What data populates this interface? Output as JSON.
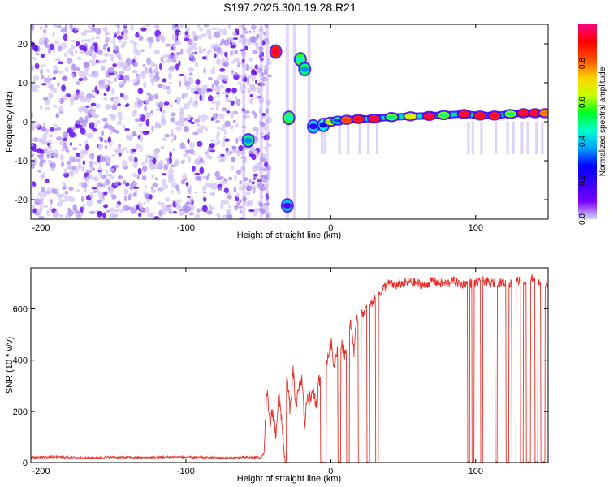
{
  "title": "S197.2025.300.19.28.R21",
  "colors": {
    "snr_line": "#e8312a",
    "axis": "#000000",
    "colorbar_stops": [
      "#d8d8ff",
      "#7a00ff",
      "#3a00ff",
      "#0000ff",
      "#00a0ff",
      "#00ffd0",
      "#00ff20",
      "#c8ff00",
      "#ffd000",
      "#ff5000",
      "#ff0000",
      "#ff0080"
    ]
  },
  "chart_data": [
    {
      "type": "heatmap",
      "name": "spectrogram",
      "xlabel": "Height of straight line (km)",
      "ylabel": "Frequency (Hz)",
      "xlim": [
        -207,
        150
      ],
      "ylim": [
        -25,
        25
      ],
      "xticks": [
        -200,
        -100,
        0,
        100
      ],
      "xtick_labels": [
        "-200",
        "-100",
        "0",
        "100"
      ],
      "yticks": [
        -20,
        -10,
        0,
        10,
        20
      ],
      "ytick_labels": [
        "-20",
        "-10",
        "0",
        "10",
        "20"
      ],
      "colorbar": {
        "label": "Normalized spectral amplitude",
        "range": [
          0,
          1
        ],
        "ticks": [
          0.0,
          0.2,
          0.4,
          0.6,
          0.8
        ],
        "tick_labels": [
          "0.0",
          "0.2",
          "0.4",
          "0.6",
          "0.8"
        ]
      },
      "noise_region_x": [
        -207,
        -42
      ],
      "signal_track": [
        {
          "x": -57,
          "f": -4.8,
          "a": 0.35
        },
        {
          "x": -38,
          "f": 18.0,
          "a": 0.95
        },
        {
          "x": -21,
          "f": 16.0,
          "a": 0.45
        },
        {
          "x": -18,
          "f": 13.5,
          "a": 0.35
        },
        {
          "x": -29,
          "f": 1.0,
          "a": 0.45
        },
        {
          "x": -30,
          "f": -21.5,
          "a": 0.15
        },
        {
          "x": -12,
          "f": -1.2,
          "a": 0.2
        },
        {
          "x": -5,
          "f": -0.8,
          "a": 0.25
        },
        {
          "x": 0,
          "f": 0.0,
          "a": 0.6
        },
        {
          "x": 5,
          "f": 0.3,
          "a": 0.3
        },
        {
          "x": 11,
          "f": 0.5,
          "a": 0.85
        },
        {
          "x": 19,
          "f": 0.7,
          "a": 0.95
        },
        {
          "x": 30,
          "f": 0.8,
          "a": 0.98
        },
        {
          "x": 42,
          "f": 1.2,
          "a": 0.5
        },
        {
          "x": 55,
          "f": 1.4,
          "a": 0.65
        },
        {
          "x": 68,
          "f": 1.5,
          "a": 0.98
        },
        {
          "x": 78,
          "f": 1.7,
          "a": 0.5
        },
        {
          "x": 92,
          "f": 2.0,
          "a": 0.98
        },
        {
          "x": 103,
          "f": 1.6,
          "a": 0.95
        },
        {
          "x": 113,
          "f": 1.6,
          "a": 0.95
        },
        {
          "x": 124,
          "f": 2.0,
          "a": 0.5
        },
        {
          "x": 133,
          "f": 2.2,
          "a": 0.98
        },
        {
          "x": 141,
          "f": 2.2,
          "a": 0.98
        },
        {
          "x": 148,
          "f": 2.2,
          "a": 0.8
        }
      ]
    },
    {
      "type": "line",
      "name": "snr",
      "xlabel": "Height of straight line (km)",
      "ylabel": "SNR (10 * v/v)",
      "xlim": [
        -207,
        150
      ],
      "ylim": [
        0,
        760
      ],
      "xticks": [
        -200,
        -100,
        0,
        100
      ],
      "xtick_labels": [
        "-200",
        "-100",
        "0",
        "100"
      ],
      "yticks": [
        0,
        200,
        400,
        600
      ],
      "ytick_labels": [
        "0",
        "200",
        "400",
        "600"
      ],
      "series": [
        {
          "name": "SNR",
          "x": [
            -207,
            -190,
            -170,
            -150,
            -130,
            -110,
            -90,
            -70,
            -60,
            -48,
            -46,
            -45,
            -44,
            -42,
            -40,
            -38,
            -36,
            -34,
            -32,
            -31,
            -30,
            -28,
            -26,
            -24,
            -22,
            -20,
            -18,
            -16,
            -14,
            -12,
            -10,
            -8,
            -6,
            -4,
            -2,
            0,
            2,
            4,
            6,
            8,
            10,
            12,
            14,
            16,
            18,
            20,
            22,
            24,
            26,
            28,
            30,
            32,
            34,
            36,
            38,
            40,
            45,
            50,
            55,
            60,
            65,
            70,
            75,
            80,
            85,
            90,
            94,
            95,
            97,
            98,
            100,
            103,
            104,
            106,
            110,
            113,
            114,
            116,
            120,
            122,
            124,
            126,
            130,
            132,
            134,
            136,
            140,
            142,
            144,
            146,
            150
          ],
          "y": [
            20,
            22,
            18,
            21,
            19,
            22,
            20,
            18,
            20,
            20,
            40,
            180,
            270,
            150,
            200,
            110,
            260,
            180,
            20,
            0,
            320,
            200,
            350,
            230,
            280,
            330,
            150,
            270,
            240,
            300,
            200,
            330,
            0,
            0,
            400,
            480,
            380,
            440,
            0,
            460,
            420,
            0,
            540,
            440,
            560,
            0,
            580,
            600,
            0,
            620,
            640,
            0,
            660,
            680,
            690,
            700,
            690,
            700,
            705,
            700,
            690,
            710,
            700,
            700,
            710,
            695,
            700,
            0,
            700,
            0,
            700,
            705,
            0,
            710,
            700,
            700,
            0,
            705,
            700,
            0,
            700,
            0,
            710,
            0,
            700,
            0,
            720,
            0,
            700,
            0,
            700
          ]
        }
      ]
    }
  ]
}
